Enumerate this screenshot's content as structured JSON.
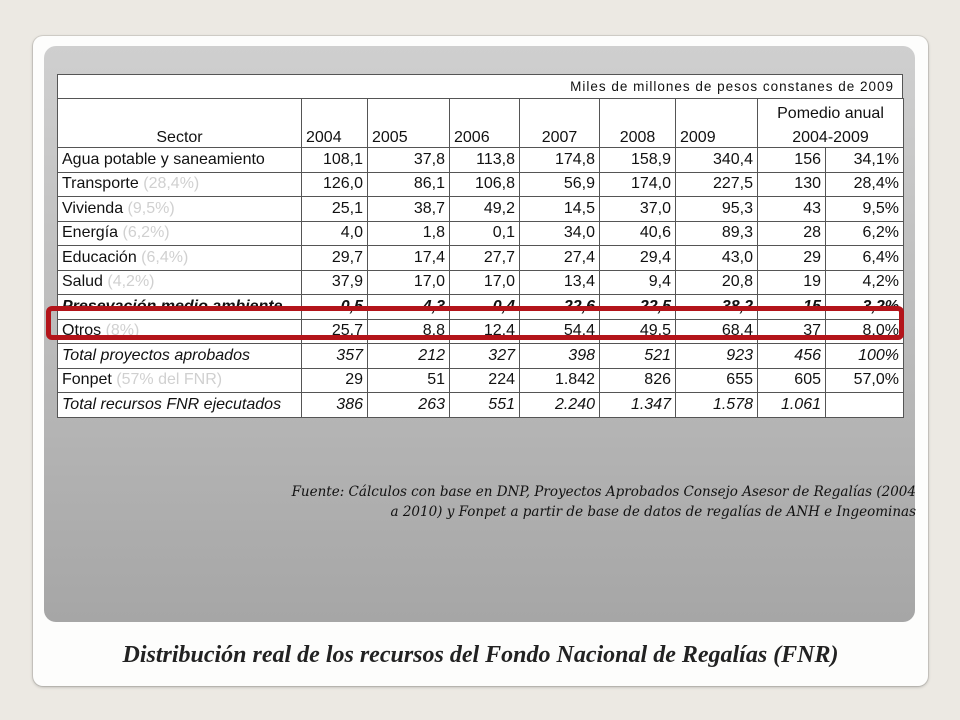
{
  "units": "Miles de millones de pesos constanes de 2009",
  "header": {
    "sector": "Sector",
    "years": [
      "2004",
      "2005",
      "2006",
      "2007",
      "2008",
      "2009"
    ],
    "avg_line1": "Pomedio anual",
    "avg_line2": "2004-2009"
  },
  "rows": [
    {
      "sector": "Agua potable y saneamiento",
      "pct_note": "",
      "values": [
        "108,1",
        "37,8",
        "113,8",
        "174,8",
        "158,9",
        "340,4"
      ],
      "avg": "156",
      "share": "34,1%"
    },
    {
      "sector": "Transporte",
      "pct_note": "(28,4%)",
      "values": [
        "126,0",
        "86,1",
        "106,8",
        "56,9",
        "174,0",
        "227,5"
      ],
      "avg": "130",
      "share": "28,4%"
    },
    {
      "sector": "Vivienda",
      "pct_note": "(9,5%)",
      "values": [
        "25,1",
        "38,7",
        "49,2",
        "14,5",
        "37,0",
        "95,3"
      ],
      "avg": "43",
      "share": "9,5%"
    },
    {
      "sector": "Energía",
      "pct_note": "(6,2%)",
      "values": [
        "4,0",
        "1,8",
        "0,1",
        "34,0",
        "40,6",
        "89,3"
      ],
      "avg": "28",
      "share": "6,2%"
    },
    {
      "sector": "Educación",
      "pct_note": "(6,4%)",
      "values": [
        "29,7",
        "17,4",
        "27,7",
        "27,4",
        "29,4",
        "43,0"
      ],
      "avg": "29",
      "share": "6,4%"
    },
    {
      "sector": "Salud",
      "pct_note": "(4,2%)",
      "values": [
        "37,9",
        "17,0",
        "17,0",
        "13,4",
        "9,4",
        "20,8"
      ],
      "avg": "19",
      "share": "4,2%"
    },
    {
      "sector": "Presevación medio ambiente",
      "pct_note": "",
      "values": [
        "0,5",
        "4,3",
        "0,4",
        "22,6",
        "22,5",
        "38,2"
      ],
      "avg": "15",
      "share": "3,2%"
    },
    {
      "sector": "Otros",
      "pct_note": "(8%)",
      "values": [
        "25,7",
        "8,8",
        "12,4",
        "54,4",
        "49,5",
        "68,4"
      ],
      "avg": "37",
      "share": "8,0%"
    },
    {
      "sector": "Total proyectos aprobados",
      "pct_note": "",
      "values": [
        "357",
        "212",
        "327",
        "398",
        "521",
        "923"
      ],
      "avg": "456",
      "share": "100%"
    },
    {
      "sector": "Fonpet",
      "pct_note": "(57% del FNR)",
      "values": [
        "29",
        "51",
        "224",
        "1.842",
        "826",
        "655"
      ],
      "avg": "605",
      "share": "57,0%"
    },
    {
      "sector": "Total recursos FNR ejecutados",
      "pct_note": "",
      "values": [
        "386",
        "263",
        "551",
        "2.240",
        "1.347",
        "1.578"
      ],
      "avg": "1.061",
      "share": ""
    }
  ],
  "source_line1": "Fuente: Cálculos con base en DNP, Proyectos Aprobados Consejo Asesor de Regalías (2004",
  "source_line2": "a 2010) y Fonpet a partir de base de datos de regalías de ANH e Ingeominas",
  "title": "Distribución real de los recursos del Fondo Nacional de Regalías (FNR)",
  "colors": {
    "highlight_border": "#b3141a",
    "panel": "#bdbdbd"
  }
}
